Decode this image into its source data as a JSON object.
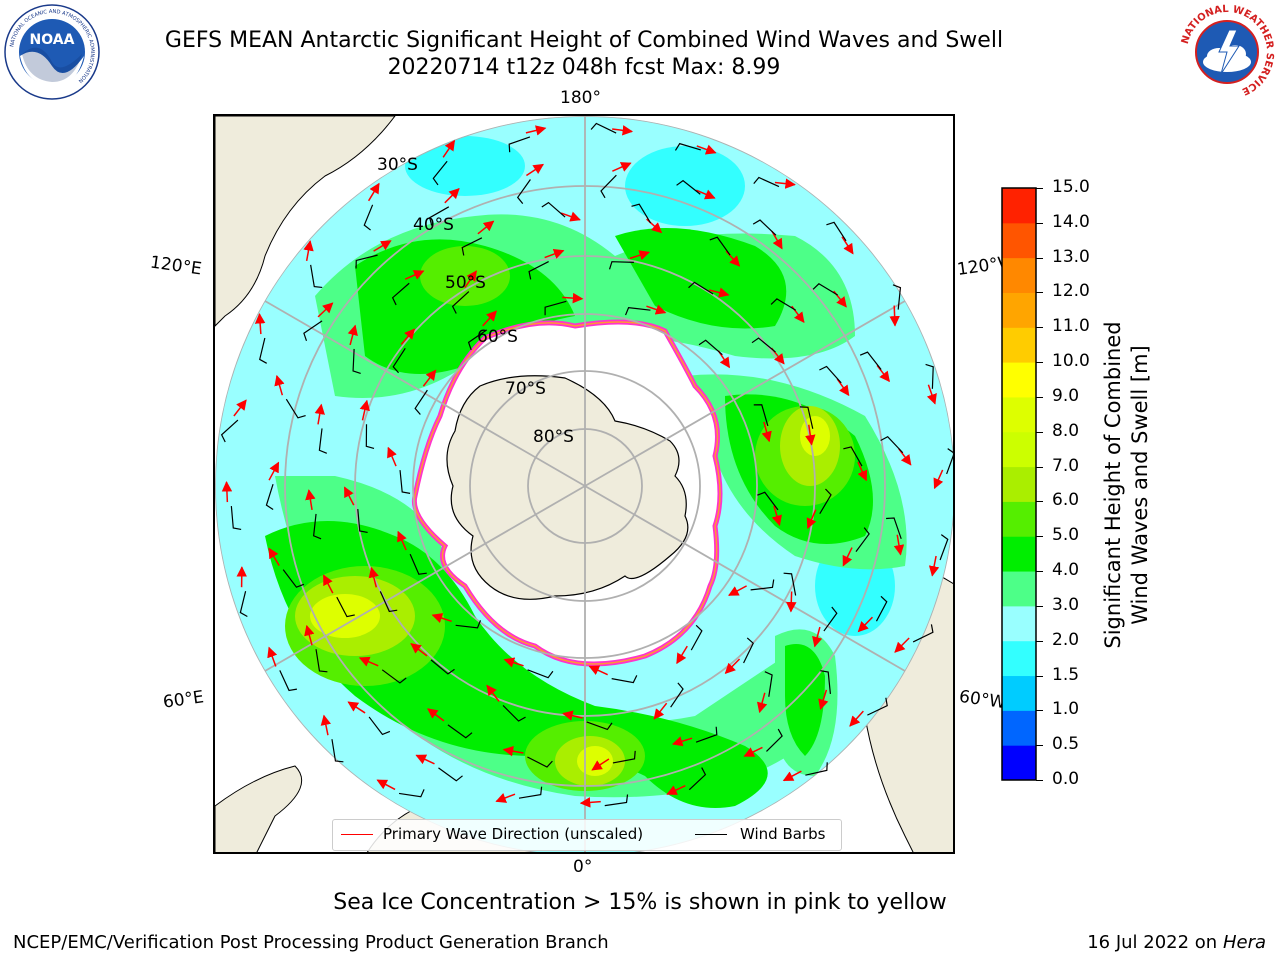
{
  "header": {
    "title_line1": "GEFS MEAN Antarctic Significant Height of Combined Wind Waves and Swell",
    "title_line2": "20220714 t12z 048h fcst   Max: 8.99"
  },
  "logos": {
    "noaa": {
      "center_text": "NOAA",
      "ring_text_top": "NATIONAL OCEANIC AND ATMOSPHERIC ADMINISTRATION",
      "ring_text_bottom": "U.S. DEPARTMENT OF COMMERCE"
    },
    "nws": {
      "ring_text": "NATIONAL WEATHER SERVICE"
    }
  },
  "map": {
    "longitude_labels": {
      "top": "180°",
      "bottom": "0°",
      "left_upper": "120°E",
      "left_lower": "60°E",
      "right_upper": "120°W",
      "right_lower": "60°W"
    },
    "latitude_labels": [
      "30°S",
      "40°S",
      "50°S",
      "60°S",
      "70°S",
      "80°S"
    ],
    "legend": {
      "wave_direction": "Primary Wave Direction (unscaled)",
      "wind_barbs": "Wind Barbs"
    },
    "colors": {
      "land": "#efecdc",
      "ice": "#ffffff",
      "ice_edge": "#ff33cc",
      "ice_edge_inner": "#ff9933",
      "wave_arrow": "#ff0000",
      "barb": "#000000"
    }
  },
  "colorbar": {
    "title": "Significant Height of Combined\nWind Waves and Swell [m]",
    "tick_labels": [
      "15.0",
      "14.0",
      "13.0",
      "12.0",
      "11.0",
      "10.0",
      "9.0",
      "8.0",
      "7.0",
      "6.0",
      "5.0",
      "4.0",
      "3.0",
      "2.0",
      "1.5",
      "1.0",
      "0.5",
      "0.0"
    ],
    "levels": [
      0.0,
      0.5,
      1.0,
      1.5,
      2.0,
      3.0,
      4.0,
      5.0,
      6.0,
      7.0,
      8.0,
      9.0,
      10.0,
      11.0,
      12.0,
      13.0,
      14.0,
      15.0
    ],
    "colors": [
      "#0000ff",
      "#0066ff",
      "#00ccff",
      "#33ffff",
      "#99ffff",
      "#4dff88",
      "#00ee00",
      "#55ee00",
      "#aaee00",
      "#ccff00",
      "#ddff00",
      "#ffff00",
      "#ffcc00",
      "#ffa500",
      "#ff8800",
      "#ff5500",
      "#ff2200"
    ]
  },
  "footnote": "Sea Ice Concentration > 15% is shown in pink to yellow",
  "credits": {
    "left": "NCEP/EMC/Verification Post Processing Product Generation Branch",
    "right_date": "16 Jul 2022 on ",
    "right_machine": "Hera"
  }
}
